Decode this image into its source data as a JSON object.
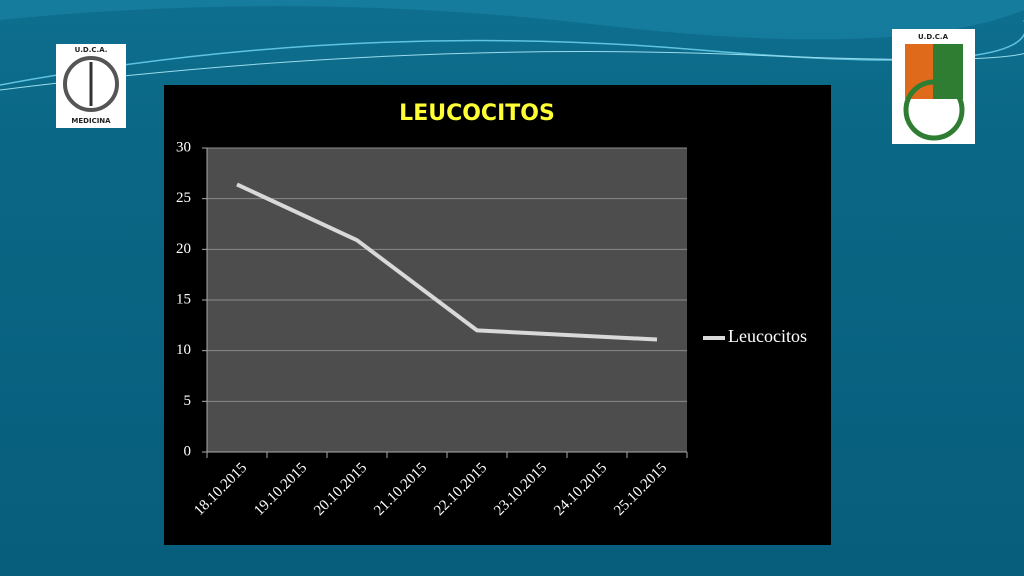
{
  "slide": {
    "left_logo": [
      "U.D.C.A.",
      "MEDICINA"
    ],
    "right_logo": [
      "U.D.C.A"
    ]
  },
  "chart_data": {
    "type": "line",
    "title": "LEUCOCITOS",
    "xticks": [
      "18.10.2015",
      "19.10.2015",
      "20.10.2015",
      "21.10.2015",
      "22.10.2015",
      "23.10.2015",
      "24.10.2015",
      "25.10.2015"
    ],
    "series": [
      {
        "name": "Leucocitos",
        "color": "#d9d9d9",
        "x": [
          "18.10.2015",
          "20.10.2015",
          "22.10.2015",
          "25.10.2015"
        ],
        "values": [
          26.4,
          20.9,
          12,
          11.1
        ]
      }
    ],
    "ylim": [
      0,
      30
    ],
    "yticks": [
      0,
      5,
      10,
      15,
      20,
      25,
      30
    ],
    "grid": true,
    "legend": "right"
  }
}
